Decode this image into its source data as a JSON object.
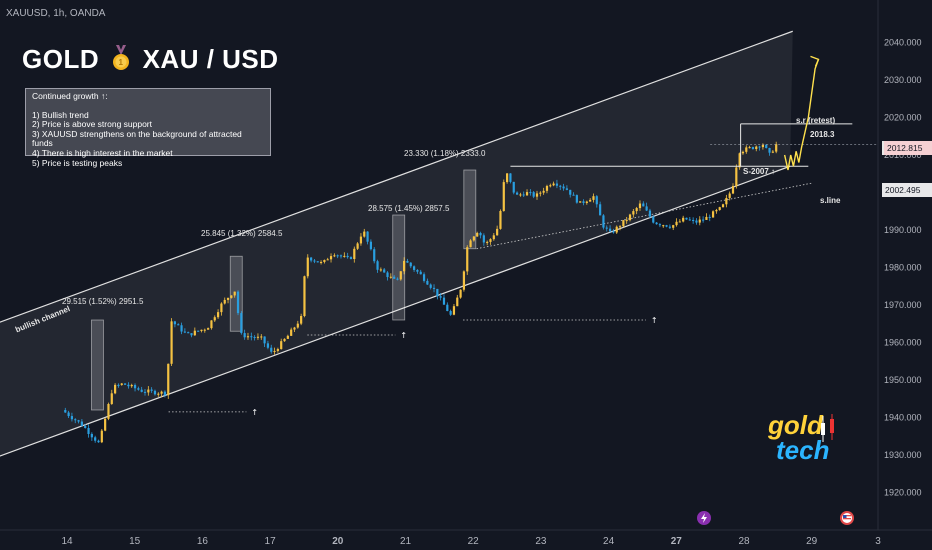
{
  "header": {
    "symbol_line": "XAUUSD, 1h, OANDA",
    "headline_left": "GOLD",
    "headline_right": "XAU / USD",
    "medal_icon": "medal-icon"
  },
  "info_box": {
    "title": "Continued growth ↑:",
    "items": [
      "1) Bullish trend",
      "2) Price is above strong support",
      "3) XAUUSD strengthens on the background of attracted funds",
      "4) There is high interest in the market",
      "5) Price is testing peaks"
    ]
  },
  "annotations": {
    "channel_label": "bullish channel",
    "move1": "29.515 (1.52%) 2951.5",
    "move2": "25.845 (1.32%) 2584.5",
    "move3": "28.575 (1.45%) 2857.5",
    "move4": "23.330 (1.18%) 2333.0",
    "sr_label": "s.r (retest)",
    "sr_value": "2018.3",
    "support_label": "S-2007 ↑",
    "sline_label": "s.line"
  },
  "price_tags": {
    "current": "2012.815",
    "secondary": "2002.495"
  },
  "logo": {
    "line1": "gold",
    "line2": "tech"
  },
  "colors": {
    "background": "#131722",
    "bull": "#f5c242",
    "bear": "#2a9fe0",
    "channel": "#e0e0e0",
    "projection": "#ffe14d"
  },
  "chart_data": {
    "type": "candlestick",
    "title": "XAUUSD, 1h, OANDA",
    "y_axis": {
      "ylim": [
        1918,
        2046
      ],
      "ticks": [
        "2040.000",
        "2030.000",
        "2020.000",
        "2010.000",
        "2000.000",
        "1990.000",
        "1980.000",
        "1970.000",
        "1960.000",
        "1950.000",
        "1940.000",
        "1930.000",
        "1920.000"
      ],
      "tick_values": [
        2040,
        2030,
        2020,
        2010,
        2000,
        1990,
        1980,
        1970,
        1960,
        1950,
        1940,
        1930,
        1920
      ]
    },
    "x_axis": {
      "ticks": [
        "14",
        "15",
        "16",
        "17",
        "20",
        "21",
        "22",
        "23",
        "24",
        "27",
        "28",
        "29",
        "3"
      ],
      "bold": [
        "20",
        "27"
      ],
      "tick_days": [
        1,
        2,
        3,
        4,
        5,
        6,
        7,
        8,
        9,
        10,
        11,
        12,
        13
      ]
    },
    "price_path": [
      [
        0,
        1942
      ],
      [
        0.3,
        1938
      ],
      [
        0.55,
        1933
      ],
      [
        0.75,
        1948
      ],
      [
        0.9,
        1949
      ],
      [
        1.2,
        1947
      ],
      [
        1.55,
        1946.5
      ],
      [
        1.6,
        1966
      ],
      [
        1.85,
        1962
      ],
      [
        2.15,
        1964
      ],
      [
        2.35,
        1970
      ],
      [
        2.55,
        1974
      ],
      [
        2.65,
        1962
      ],
      [
        2.95,
        1961
      ],
      [
        3.1,
        1957
      ],
      [
        3.35,
        1962
      ],
      [
        3.55,
        1967
      ],
      [
        3.6,
        1983
      ],
      [
        3.85,
        1981
      ],
      [
        4.0,
        1984
      ],
      [
        4.25,
        1982
      ],
      [
        4.45,
        1990
      ],
      [
        4.65,
        1980
      ],
      [
        4.95,
        1976
      ],
      [
        5.05,
        1982
      ],
      [
        5.3,
        1978
      ],
      [
        5.5,
        1974
      ],
      [
        5.75,
        1967
      ],
      [
        5.9,
        1975
      ],
      [
        6.0,
        1987
      ],
      [
        6.15,
        1990
      ],
      [
        6.25,
        1986
      ],
      [
        6.35,
        1988
      ],
      [
        6.45,
        1991
      ],
      [
        6.55,
        2006
      ],
      [
        6.7,
        1999
      ],
      [
        6.85,
        2000
      ],
      [
        7.0,
        1999
      ],
      [
        7.25,
        2003
      ],
      [
        7.45,
        2001
      ],
      [
        7.65,
        1997
      ],
      [
        7.85,
        1999
      ],
      [
        8.0,
        1991
      ],
      [
        8.1,
        1989
      ],
      [
        8.35,
        1993
      ],
      [
        8.55,
        1997
      ],
      [
        8.75,
        1992
      ],
      [
        9.0,
        1991
      ],
      [
        9.2,
        1993
      ],
      [
        9.35,
        1992
      ],
      [
        9.5,
        1993
      ],
      [
        9.75,
        1996
      ],
      [
        9.9,
        2001
      ],
      [
        10.0,
        2011
      ],
      [
        10.2,
        2012
      ],
      [
        10.35,
        2013
      ],
      [
        10.45,
        2010
      ],
      [
        10.55,
        2012.8
      ]
    ],
    "candle_count": 215,
    "channel": {
      "upper": [
        [
          1,
          1972
        ],
        [
          11.72,
          2043
        ]
      ],
      "lower": [
        [
          -0.1,
          1929
        ],
        [
          11.68,
          2007
        ]
      ]
    },
    "levels": {
      "support": 2007,
      "resistance_retest": 2018.3,
      "current_price": 2012.815,
      "secondary_price": 2002.495
    }
  }
}
